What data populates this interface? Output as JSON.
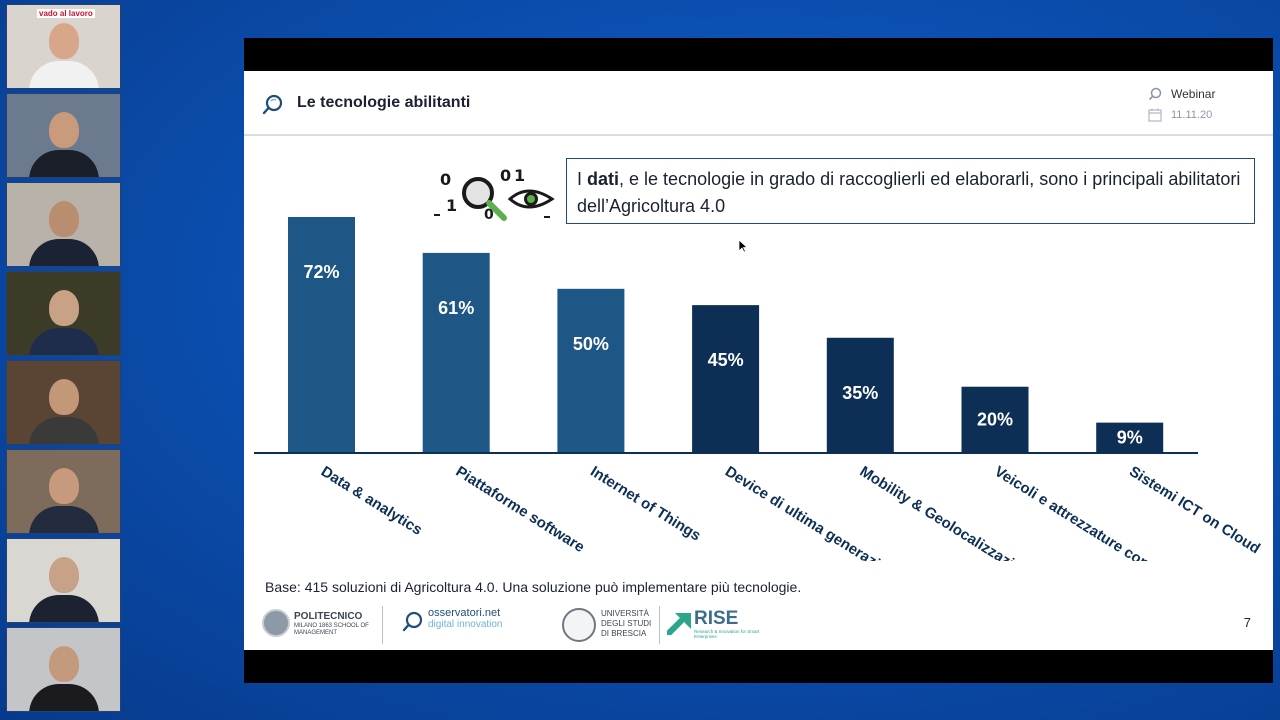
{
  "participants": [
    {
      "caption": "vado al lavoro",
      "bg": "#d9d4ce",
      "skin": "#d8a78b",
      "shirt": "#f1f1f1"
    },
    {
      "caption": "",
      "bg": "#6b7a8f",
      "skin": "#c99a7c",
      "shirt": "#1a1f29"
    },
    {
      "caption": "",
      "bg": "#b9b2a8",
      "skin": "#b98d70",
      "shirt": "#1b2233"
    },
    {
      "caption": "",
      "bg": "#3c3b28",
      "skin": "#c9a184",
      "shirt": "#1f2d4d"
    },
    {
      "caption": "",
      "bg": "#5a4433",
      "skin": "#c39878",
      "shirt": "#3a3a3a"
    },
    {
      "caption": "",
      "bg": "#7d6b5b",
      "skin": "#c79a7e",
      "shirt": "#222c3e"
    },
    {
      "caption": "",
      "bg": "#d8d7d2",
      "skin": "#c7a188",
      "shirt": "#1c2230"
    },
    {
      "caption": "",
      "bg": "#c3c5c8",
      "skin": "#c49a7f",
      "shirt": "#1b1b1f"
    }
  ],
  "slide": {
    "title": "Le tecnologie abilitanti",
    "webinar_label": "Webinar",
    "webinar_date": "11.11.20",
    "callout_prefix": "I ",
    "callout_bold": "dati",
    "callout_rest": ", e le tecnologie in grado di raccoglierli ed elaborarli, sono i principali abilitatori dell’Agricoltura 4.0",
    "base_note": "Base: 415 soluzioni di Agricoltura 4.0. Una soluzione può implementare più tecnologie.",
    "page_number": "7",
    "logos": {
      "polimi_name": "POLITECNICO",
      "polimi_sub": "MILANO 1863 SCHOOL OF MANAGEMENT",
      "osservatori_1": "osservatori.net",
      "osservatori_2": "digital innovation",
      "unibs": "UNIVERSITÀ DEGLI STUDI DI BRESCIA",
      "rise": "RISE",
      "rise_sub": "Research & Innovation for Smart Enterprises"
    }
  },
  "chart_data": {
    "type": "bar",
    "categories": [
      "Data & analytics",
      "Piattaforme software",
      "Internet of Things",
      "Device di ultima generazione",
      "Mobility & Geolocalizzazione",
      "Veicoli e attrezzature connessi",
      "Sistemi ICT on Cloud"
    ],
    "values": [
      72,
      61,
      50,
      45,
      35,
      20,
      9
    ],
    "data_labels": [
      "72%",
      "61%",
      "50%",
      "45%",
      "35%",
      "20%",
      "9%"
    ],
    "unit": "%",
    "ylim": [
      0,
      72
    ],
    "grid": false,
    "colors": [
      "#1e5685",
      "#1e5685",
      "#1e5685",
      "#0e2f55",
      "#0e2f55",
      "#0e2f55",
      "#0e2f55"
    ]
  }
}
